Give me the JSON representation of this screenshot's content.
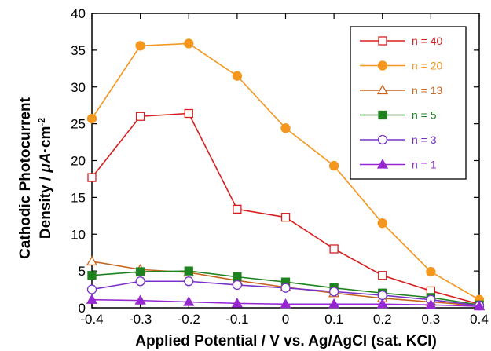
{
  "chart_data": {
    "type": "line",
    "x": [
      -0.4,
      -0.3,
      -0.2,
      -0.1,
      0,
      0.1,
      0.2,
      0.3,
      0.4
    ],
    "x_tick_labels": [
      "-0.4",
      "-0.3",
      "-0.2",
      "-0.1",
      "0",
      "0.1",
      "0.2",
      "0.3",
      "0.4"
    ],
    "y_tick_labels": [
      "0",
      "5",
      "10",
      "15",
      "20",
      "25",
      "30",
      "35",
      "40"
    ],
    "xlim": [
      -0.4,
      0.4
    ],
    "ylim": [
      0,
      40
    ],
    "xlabel": "Applied Potential  / V vs. Ag/AgCl (sat. KCl)",
    "ylabel_line1": "Cathodic Photocurrent",
    "ylabel_line2_prefix": "Density / ",
    "ylabel_unit_mu": "μA",
    "ylabel_unit_rest": "·cm",
    "ylabel_unit_exp": "-2",
    "legend_position": "top-right",
    "grid": false,
    "series": [
      {
        "name": "n = 40",
        "color": "#d62020",
        "marker": "open-square",
        "values": [
          17.7,
          26.0,
          26.4,
          13.4,
          12.3,
          8.0,
          4.4,
          2.3,
          0.5
        ]
      },
      {
        "name": "n = 20",
        "color": "#f5961e",
        "marker": "filled-circle",
        "values": [
          25.7,
          35.6,
          35.9,
          31.5,
          24.4,
          19.3,
          11.5,
          4.9,
          1.1
        ]
      },
      {
        "name": "n = 13",
        "color": "#c8641e",
        "marker": "open-triangle",
        "values": [
          6.3,
          5.2,
          4.8,
          3.7,
          2.8,
          2.0,
          1.3,
          0.8,
          0.3
        ]
      },
      {
        "name": "n = 5",
        "color": "#1e821e",
        "marker": "filled-square",
        "values": [
          4.4,
          4.9,
          5.0,
          4.2,
          3.5,
          2.7,
          2.0,
          1.4,
          0.4
        ]
      },
      {
        "name": "n = 3",
        "color": "#7832c8",
        "marker": "open-circle",
        "values": [
          2.5,
          3.6,
          3.6,
          3.1,
          2.7,
          2.2,
          1.7,
          1.1,
          0.3
        ]
      },
      {
        "name": "n = 1",
        "color": "#9628d2",
        "marker": "filled-triangle",
        "values": [
          1.1,
          1.0,
          0.8,
          0.6,
          0.5,
          0.5,
          0.5,
          0.4,
          0.2
        ]
      }
    ]
  }
}
